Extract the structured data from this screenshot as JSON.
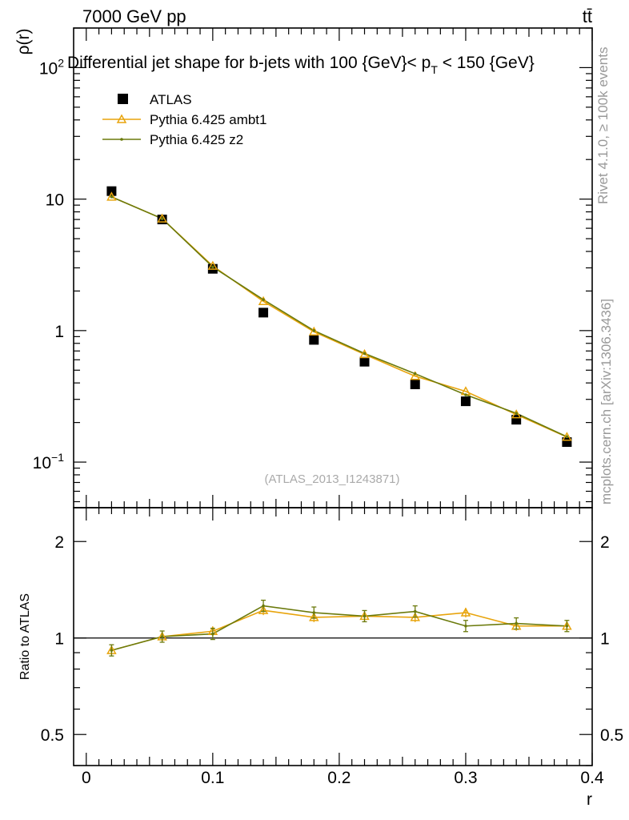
{
  "header": {
    "energy_label": "7000 GeV pp",
    "process_label": "tt̄"
  },
  "side_labels": {
    "rivet": "Rivet 4.1.0, ≥ 100k events",
    "mcplots": "mcplots.cern.ch [arXiv:1306.3436]"
  },
  "colors": {
    "atlas": "#000000",
    "ambt1": "#e8a40c",
    "z2": "#6b7a0c"
  },
  "chart_data": [
    {
      "type": "line",
      "title_main": "Differential jet shape for b-jets with 100 {GeV}",
      "title_lt": "< p",
      "title_sub": "T",
      "title_tail": " < 150 {GeV}",
      "ylabel": "ρ(r)",
      "yscale": "log",
      "ylim": [
        0.045,
        200
      ],
      "xlim": [
        -0.01,
        0.4
      ],
      "yticks": [
        {
          "v": 100,
          "base": "10",
          "exp": "2"
        },
        {
          "v": 10,
          "base": "10",
          "exp": ""
        },
        {
          "v": 1,
          "base": "1",
          "exp": ""
        },
        {
          "v": 0.1,
          "base": "10",
          "exp": "−1"
        }
      ],
      "watermark": "(ATLAS_2013_I1243871)",
      "legend": {
        "position": "top-left",
        "entries": [
          "ATLAS",
          "Pythia 6.425 ambt1",
          "Pythia 6.425 z2"
        ]
      },
      "x": [
        0.02,
        0.06,
        0.1,
        0.14,
        0.18,
        0.22,
        0.26,
        0.3,
        0.34,
        0.38
      ],
      "series": [
        {
          "name": "ATLAS",
          "style": "square",
          "values": [
            11.5,
            7.0,
            2.95,
            1.37,
            0.85,
            0.58,
            0.39,
            0.29,
            0.21,
            0.142
          ]
        },
        {
          "name": "Pythia 6.425 ambt1",
          "style": "triangle",
          "values": [
            10.4,
            7.1,
            3.1,
            1.67,
            0.98,
            0.66,
            0.45,
            0.345,
            0.23,
            0.155
          ]
        },
        {
          "name": "Pythia 6.425 z2",
          "style": "dot",
          "values": [
            10.4,
            7.1,
            3.05,
            1.72,
            1.0,
            0.67,
            0.47,
            0.325,
            0.235,
            0.156
          ]
        }
      ]
    },
    {
      "type": "line",
      "ylabel": "Ratio to ATLAS",
      "xlabel": "r",
      "yscale": "log",
      "ylim": [
        0.4,
        2.55
      ],
      "xlim": [
        -0.01,
        0.4
      ],
      "yticks": [
        {
          "v": 0.5,
          "label": "0.5"
        },
        {
          "v": 1,
          "label": "1"
        },
        {
          "v": 2,
          "label": "2"
        }
      ],
      "xticks": [
        {
          "v": 0,
          "label": "0"
        },
        {
          "v": 0.1,
          "label": "0.1"
        },
        {
          "v": 0.2,
          "label": "0.2"
        },
        {
          "v": 0.3,
          "label": "0.3"
        },
        {
          "v": 0.4,
          "label": "0.4"
        }
      ],
      "x": [
        0.02,
        0.06,
        0.1,
        0.14,
        0.18,
        0.22,
        0.26,
        0.3,
        0.34,
        0.38
      ],
      "series": [
        {
          "name": "Pythia 6.425 ambt1",
          "style": "triangle",
          "values": [
            0.915,
            1.01,
            1.05,
            1.22,
            1.16,
            1.17,
            1.16,
            1.2,
            1.09,
            1.09
          ]
        },
        {
          "name": "Pythia 6.425 z2",
          "style": "dot",
          "values": [
            0.915,
            1.01,
            1.03,
            1.26,
            1.2,
            1.17,
            1.21,
            1.09,
            1.11,
            1.09
          ]
        }
      ]
    }
  ]
}
